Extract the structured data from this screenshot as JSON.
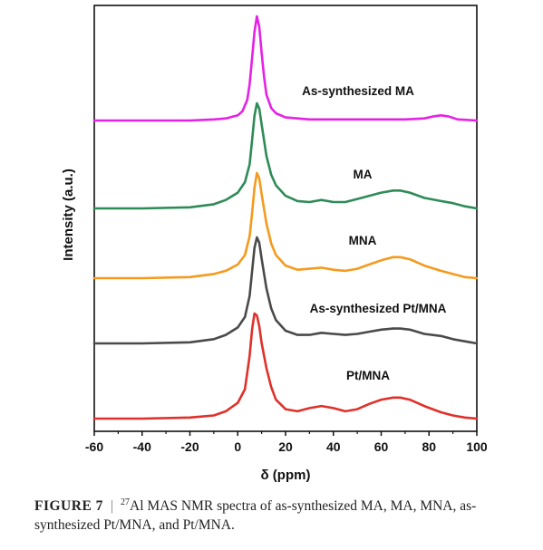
{
  "chart_data": {
    "type": "line",
    "title": "",
    "xlabel": "δ (ppm)",
    "ylabel": "Intensity (a.u.)",
    "xlim": [
      -60,
      100
    ],
    "x_ticks": [
      "-60",
      "-40",
      "-20",
      "0",
      "20",
      "40",
      "60",
      "80",
      "100"
    ],
    "grid": false,
    "legend": "labels placed beside each trace",
    "stacked_offsets": true,
    "series": [
      {
        "name": "As-synthesized MA",
        "color": "#e621e6",
        "x": [
          -60,
          -40,
          -20,
          -10,
          -5,
          0,
          2,
          4,
          5,
          6,
          7,
          8,
          9,
          10,
          11,
          12,
          14,
          16,
          20,
          30,
          40,
          50,
          60,
          70,
          78,
          82,
          85,
          88,
          92,
          100
        ],
        "values": [
          0,
          0,
          0,
          0.01,
          0.02,
          0.05,
          0.09,
          0.2,
          0.35,
          0.6,
          0.85,
          1.0,
          0.9,
          0.65,
          0.42,
          0.25,
          0.12,
          0.07,
          0.03,
          0.01,
          0.01,
          0.01,
          0.01,
          0.01,
          0.02,
          0.04,
          0.05,
          0.04,
          0.01,
          0
        ]
      },
      {
        "name": "MA",
        "color": "#2e8b57",
        "x": [
          -60,
          -40,
          -20,
          -10,
          -5,
          0,
          3,
          5,
          6,
          7,
          8,
          9,
          10,
          12,
          14,
          16,
          20,
          25,
          30,
          35,
          40,
          45,
          50,
          55,
          60,
          65,
          68,
          72,
          78,
          85,
          90,
          95,
          100
        ],
        "values": [
          0,
          0,
          0.01,
          0.04,
          0.08,
          0.15,
          0.25,
          0.42,
          0.65,
          0.88,
          1.0,
          0.95,
          0.8,
          0.5,
          0.32,
          0.22,
          0.12,
          0.07,
          0.06,
          0.08,
          0.06,
          0.06,
          0.09,
          0.12,
          0.15,
          0.17,
          0.17,
          0.15,
          0.1,
          0.07,
          0.05,
          0.02,
          0
        ]
      },
      {
        "name": "MNA",
        "color": "#f59a1d",
        "x": [
          -60,
          -40,
          -20,
          -10,
          -5,
          0,
          3,
          5,
          6,
          7,
          8,
          9,
          10,
          12,
          14,
          16,
          20,
          25,
          30,
          35,
          40,
          45,
          50,
          55,
          60,
          65,
          68,
          72,
          78,
          85,
          90,
          95,
          100
        ],
        "values": [
          0,
          0,
          0.01,
          0.04,
          0.07,
          0.13,
          0.22,
          0.4,
          0.62,
          0.86,
          1.0,
          0.95,
          0.8,
          0.52,
          0.33,
          0.22,
          0.12,
          0.08,
          0.09,
          0.1,
          0.08,
          0.07,
          0.09,
          0.13,
          0.17,
          0.2,
          0.2,
          0.18,
          0.12,
          0.07,
          0.04,
          0.01,
          0
        ]
      },
      {
        "name": "As-synthesized Pt/MNA",
        "color": "#4a4a4a",
        "x": [
          -60,
          -40,
          -20,
          -10,
          -5,
          0,
          3,
          5,
          6,
          7,
          8,
          9,
          10,
          12,
          14,
          16,
          20,
          25,
          30,
          35,
          40,
          45,
          50,
          55,
          60,
          65,
          68,
          72,
          78,
          85,
          90,
          95,
          100
        ],
        "values": [
          0,
          0,
          0.01,
          0.04,
          0.08,
          0.15,
          0.25,
          0.45,
          0.68,
          0.9,
          1.0,
          0.95,
          0.8,
          0.52,
          0.33,
          0.22,
          0.12,
          0.08,
          0.08,
          0.1,
          0.09,
          0.08,
          0.09,
          0.11,
          0.13,
          0.14,
          0.14,
          0.13,
          0.09,
          0.07,
          0.04,
          0.02,
          0
        ]
      },
      {
        "name": "Pt/MNA",
        "color": "#e0302a",
        "x": [
          -60,
          -40,
          -20,
          -10,
          -5,
          0,
          3,
          5,
          6,
          7,
          8,
          9,
          10,
          12,
          14,
          16,
          20,
          25,
          30,
          35,
          40,
          45,
          50,
          55,
          60,
          65,
          68,
          72,
          78,
          85,
          90,
          95,
          100
        ],
        "values": [
          0,
          0,
          0.01,
          0.03,
          0.07,
          0.15,
          0.28,
          0.6,
          0.85,
          1.0,
          0.98,
          0.88,
          0.72,
          0.48,
          0.3,
          0.18,
          0.09,
          0.07,
          0.1,
          0.12,
          0.1,
          0.07,
          0.09,
          0.14,
          0.18,
          0.2,
          0.2,
          0.18,
          0.12,
          0.06,
          0.03,
          0.01,
          0
        ]
      }
    ]
  },
  "caption": {
    "figure_number": "FIGURE 7",
    "separator": "|",
    "isotope_mass": "27",
    "text": "Al MAS NMR spectra of as-synthesized MA, MA, MNA, as-synthesized Pt/MNA, and Pt/MNA."
  }
}
